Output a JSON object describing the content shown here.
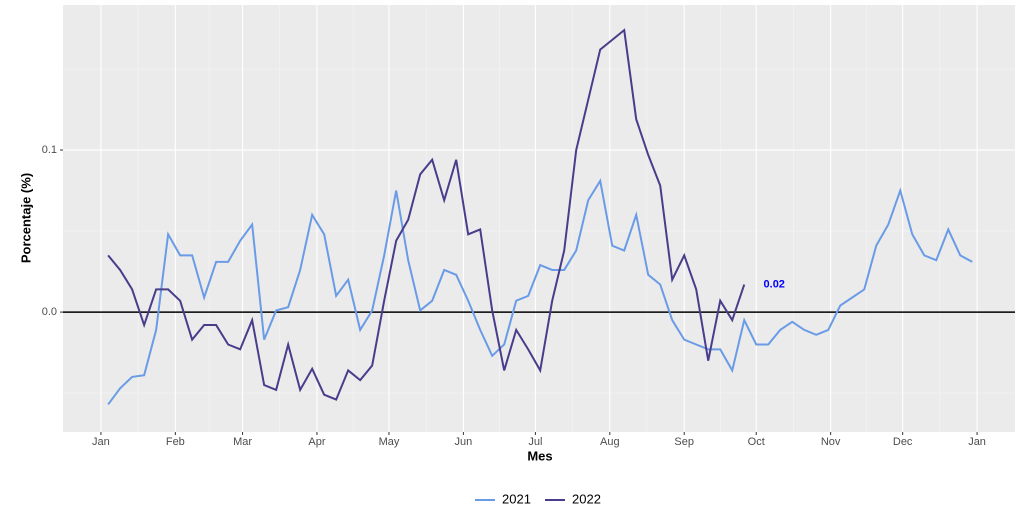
{
  "chart_data": {
    "type": "line",
    "x_label": "Mes",
    "y_label": "Porcentaje (%)",
    "x": [
      3,
      8,
      13,
      18,
      23,
      28,
      33,
      38,
      43,
      48,
      53,
      58,
      63,
      68,
      73,
      78,
      83,
      88,
      93,
      98,
      103,
      108,
      113,
      118,
      123,
      128,
      133,
      138,
      143,
      148,
      153,
      158,
      163,
      168,
      173,
      178,
      183,
      188,
      193,
      198,
      203,
      208,
      213,
      218,
      223,
      228,
      233,
      238,
      243,
      248,
      253,
      258,
      263,
      268,
      273,
      278,
      283,
      288,
      293,
      298,
      303,
      308,
      313,
      318,
      323,
      328,
      333,
      338,
      343,
      348,
      353,
      358,
      363
    ],
    "series": [
      {
        "name": "2021",
        "color": "#6a9be6",
        "values": [
          -0.057,
          -0.047,
          -0.04,
          -0.039,
          -0.011,
          0.048,
          0.035,
          0.035,
          0.009,
          0.031,
          0.031,
          0.044,
          0.054,
          -0.017,
          0.001,
          0.003,
          0.026,
          0.06,
          0.048,
          0.01,
          0.02,
          -0.011,
          0.001,
          0.035,
          0.075,
          0.032,
          0.001,
          0.007,
          0.026,
          0.023,
          0.007,
          -0.011,
          -0.027,
          -0.02,
          0.007,
          0.01,
          0.029,
          0.026,
          0.026,
          0.038,
          0.069,
          0.081,
          0.041,
          0.038,
          0.06,
          0.023,
          0.017,
          -0.005,
          -0.017,
          -0.02,
          -0.023,
          -0.023,
          -0.036,
          -0.005,
          -0.02,
          -0.02,
          -0.011,
          -0.006,
          -0.011,
          -0.014,
          -0.011,
          0.004,
          0.009,
          0.014,
          0.041,
          0.054,
          0.075,
          0.048,
          0.035,
          0.032,
          0.051,
          0.035,
          0.031
        ]
      },
      {
        "name": "2022",
        "color": "#483d8b",
        "values": [
          0.035,
          0.026,
          0.014,
          -0.008,
          0.014,
          0.014,
          0.007,
          -0.017,
          -0.008,
          -0.008,
          -0.02,
          -0.023,
          -0.005,
          -0.045,
          -0.048,
          -0.02,
          -0.048,
          -0.035,
          -0.051,
          -0.054,
          -0.036,
          -0.042,
          -0.033,
          0.007,
          0.044,
          0.057,
          0.085,
          0.094,
          0.069,
          0.094,
          0.048,
          0.051,
          0.001,
          -0.036,
          -0.011,
          -0.023,
          -0.036,
          0.007,
          0.038,
          0.1,
          0.131,
          0.162,
          0.168,
          0.174,
          0.119,
          0.097,
          0.078,
          0.02,
          0.035,
          0.014,
          -0.03,
          0.007,
          -0.005,
          0.017,
          null,
          null,
          null,
          null,
          null,
          null,
          null,
          null,
          null,
          null,
          null,
          null,
          null,
          null,
          null,
          null,
          null,
          null,
          null
        ],
        "value_labels": [
          null,
          null,
          null,
          null,
          null,
          null,
          null,
          null,
          null,
          null,
          null,
          null,
          null,
          null,
          null,
          null,
          null,
          null,
          null,
          null,
          null,
          null,
          null,
          null,
          null,
          null,
          null,
          null,
          null,
          null,
          null,
          null,
          null,
          null,
          null,
          null,
          null,
          null,
          null,
          null,
          null,
          null,
          null,
          null,
          null,
          null,
          null,
          null,
          null,
          null,
          null,
          null,
          null,
          "0.02",
          null,
          null,
          null,
          null,
          null,
          null,
          null,
          null,
          null,
          null,
          null,
          null,
          null,
          null,
          null,
          null,
          null,
          null,
          null
        ],
        "value_label_color": "#0000ff"
      }
    ],
    "xlim": [
      -15.8,
      380.8
    ],
    "xticks": [
      {
        "value": 0,
        "label": "Jan"
      },
      {
        "value": 31,
        "label": "Feb"
      },
      {
        "value": 59,
        "label": "Mar"
      },
      {
        "value": 90,
        "label": "Apr"
      },
      {
        "value": 120,
        "label": "May"
      },
      {
        "value": 151,
        "label": "Jun"
      },
      {
        "value": 181,
        "label": "Jul"
      },
      {
        "value": 212,
        "label": "Aug"
      },
      {
        "value": 243,
        "label": "Sep"
      },
      {
        "value": 273,
        "label": "Oct"
      },
      {
        "value": 304,
        "label": "Nov"
      },
      {
        "value": 334,
        "label": "Dec"
      },
      {
        "value": 365,
        "label": "Jan"
      }
    ],
    "ylim": [
      -0.074,
      0.1895
    ],
    "yticks": [
      {
        "value": 0,
        "label": "0.0"
      },
      0.1
    ],
    "hline": 0,
    "grid": true,
    "legend": "bottom"
  }
}
